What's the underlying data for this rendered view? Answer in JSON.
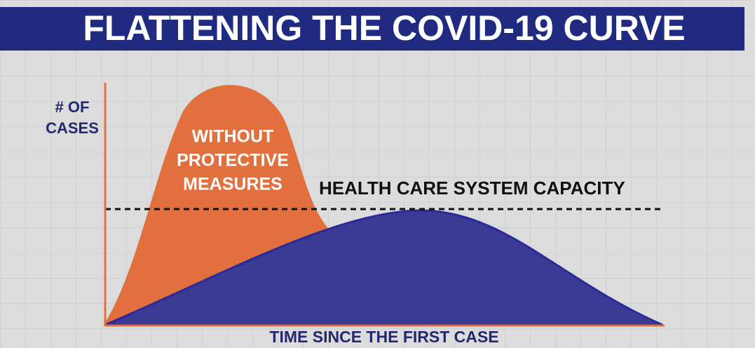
{
  "title": "FLATTENING THE COVID-19 CURVE",
  "y_axis_label": [
    "# OF",
    "CASES"
  ],
  "x_axis_label": "TIME SINCE THE FIRST CASE",
  "curve_label": [
    "WITHOUT",
    "PROTECTIVE",
    "MEASURES"
  ],
  "capacity_label": "HEALTH CARE SYSTEM CAPACITY"
}
